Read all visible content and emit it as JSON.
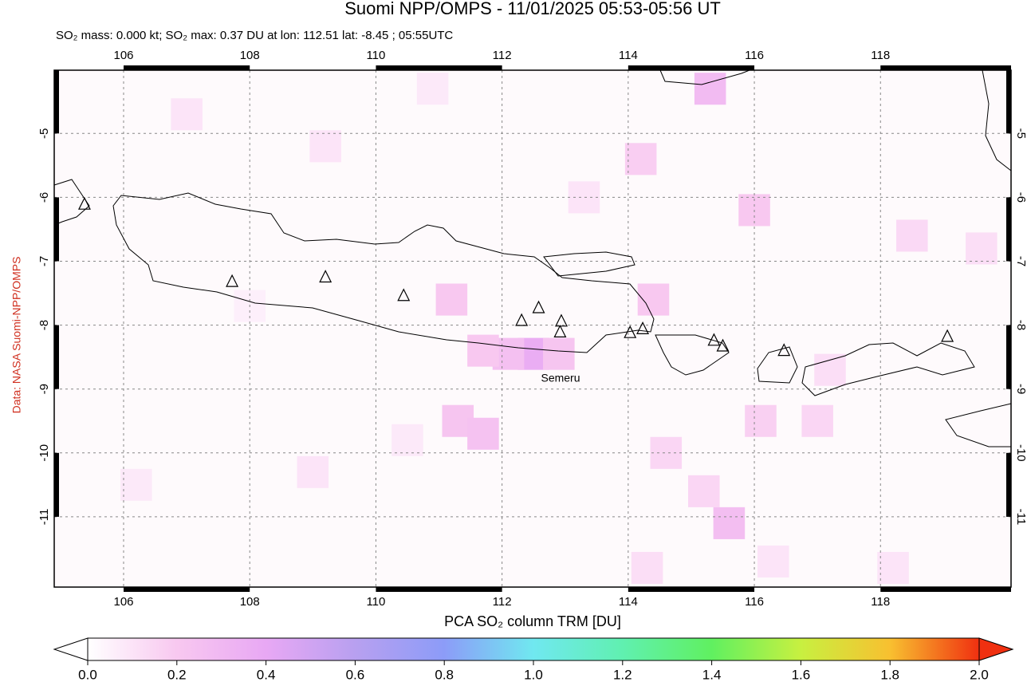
{
  "chart_data": {
    "type": "map",
    "title": "Suomi NPP/OMPS - 11/01/2025 05:53-05:56 UT",
    "subtitle": "SO₂ mass: 0.000 kt; SO₂ max: 0.37 DU at lon: 112.51 lat: -8.45 ; 05:55UTC",
    "side_label": "Data: NASA Suomi-NPP/OMPS",
    "annotation": "Semeru",
    "xlim": [
      104.9,
      120.07
    ],
    "ylim": [
      -12.1,
      -4.01
    ],
    "xticks": [
      106,
      108,
      110,
      112,
      114,
      116,
      118
    ],
    "yticks": [
      -5,
      -6,
      -7,
      -8,
      -9,
      -10,
      -11
    ],
    "grid": true,
    "volcano_color": "#000000",
    "volcanoes": [
      {
        "lon": 105.38,
        "lat": -6.11
      },
      {
        "lon": 107.72,
        "lat": -7.32
      },
      {
        "lon": 109.2,
        "lat": -7.25
      },
      {
        "lon": 110.44,
        "lat": -7.54
      },
      {
        "lon": 112.31,
        "lat": -7.93
      },
      {
        "lon": 112.58,
        "lat": -7.73
      },
      {
        "lon": 112.94,
        "lat": -7.94
      },
      {
        "lon": 112.92,
        "lat": -8.11
      },
      {
        "lon": 114.03,
        "lat": -8.12
      },
      {
        "lon": 114.23,
        "lat": -8.06
      },
      {
        "lon": 115.36,
        "lat": -8.24
      },
      {
        "lon": 115.5,
        "lat": -8.33
      },
      {
        "lon": 116.47,
        "lat": -8.4
      },
      {
        "lon": 119.06,
        "lat": -8.18
      }
    ],
    "cells": [
      {
        "lon": 112.5,
        "lat": -8.45,
        "value": 0.37
      },
      {
        "lon": 112.1,
        "lat": -8.45,
        "value": 0.25
      },
      {
        "lon": 112.9,
        "lat": -8.45,
        "value": 0.22
      },
      {
        "lon": 111.7,
        "lat": -8.4,
        "value": 0.2
      },
      {
        "lon": 111.2,
        "lat": -7.6,
        "value": 0.2
      },
      {
        "lon": 111.3,
        "lat": -9.5,
        "value": 0.22
      },
      {
        "lon": 111.7,
        "lat": -9.7,
        "value": 0.24
      },
      {
        "lon": 115.3,
        "lat": -4.3,
        "value": 0.28
      },
      {
        "lon": 116.0,
        "lat": -6.2,
        "value": 0.2
      },
      {
        "lon": 114.2,
        "lat": -5.4,
        "value": 0.18
      },
      {
        "lon": 114.4,
        "lat": -7.6,
        "value": 0.2
      },
      {
        "lon": 115.6,
        "lat": -11.1,
        "value": 0.26
      },
      {
        "lon": 115.2,
        "lat": -10.6,
        "value": 0.15
      },
      {
        "lon": 114.6,
        "lat": -10.0,
        "value": 0.15
      },
      {
        "lon": 116.1,
        "lat": -9.5,
        "value": 0.17
      },
      {
        "lon": 117.0,
        "lat": -9.5,
        "value": 0.15
      },
      {
        "lon": 118.5,
        "lat": -6.6,
        "value": 0.14
      },
      {
        "lon": 119.6,
        "lat": -6.8,
        "value": 0.12
      },
      {
        "lon": 107.0,
        "lat": -4.7,
        "value": 0.1
      },
      {
        "lon": 109.2,
        "lat": -5.2,
        "value": 0.1
      },
      {
        "lon": 110.9,
        "lat": -4.3,
        "value": 0.08
      },
      {
        "lon": 113.3,
        "lat": -6.0,
        "value": 0.1
      },
      {
        "lon": 117.2,
        "lat": -8.7,
        "value": 0.12
      },
      {
        "lon": 114.3,
        "lat": -11.8,
        "value": 0.12
      },
      {
        "lon": 118.2,
        "lat": -11.8,
        "value": 0.1
      },
      {
        "lon": 106.2,
        "lat": -10.5,
        "value": 0.08
      },
      {
        "lon": 109.0,
        "lat": -10.3,
        "value": 0.1
      },
      {
        "lon": 110.5,
        "lat": -9.8,
        "value": 0.08
      },
      {
        "lon": 116.3,
        "lat": -11.7,
        "value": 0.1
      },
      {
        "lon": 108.0,
        "lat": -7.7,
        "value": 0.06
      }
    ],
    "colorbar": {
      "label": "PCA SO₂ column TRM [DU]",
      "lim": [
        0,
        2
      ],
      "ticks": [
        {
          "value": 0,
          "label": "0.0"
        },
        0.2,
        0.4,
        0.6,
        0.8,
        {
          "value": 1,
          "label": "1.0"
        },
        1.2,
        1.4,
        1.6,
        1.8,
        {
          "value": 2,
          "label": "2.0"
        }
      ],
      "colors": [
        "#ffffff",
        "#f8c8f0",
        "#e8a8f4",
        "#b8a0f0",
        "#8c9cf8",
        "#70e8f0",
        "#60f0b0",
        "#60f060",
        "#c8f040",
        "#f8c030",
        "#f03010"
      ]
    }
  }
}
